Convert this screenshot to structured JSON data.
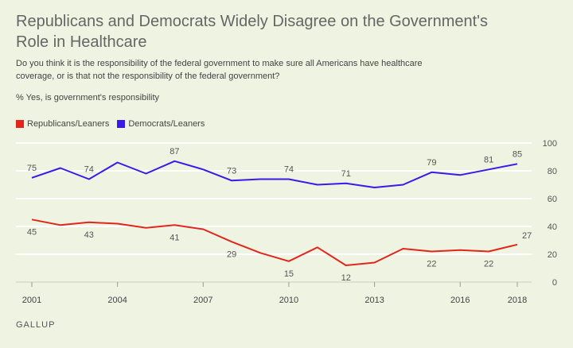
{
  "title": "Republicans and Democrats Widely Disagree on the Government's Role in Healthcare",
  "question": "Do you think it is the responsibility of the federal government to make sure all Americans have healthcare coverage, or is that not the responsibility of the federal government?",
  "subtitle": "% Yes, is government's responsibility",
  "footer": "GALLUP",
  "colors": {
    "republicans": "#e2261c",
    "democrats": "#3a1aea",
    "grid": "#ffffff",
    "background": "#eef3e2"
  },
  "chart_data": {
    "type": "line",
    "x": [
      2001,
      2002,
      2003,
      2004,
      2005,
      2006,
      2007,
      2008,
      2009,
      2010,
      2011,
      2012,
      2013,
      2014,
      2015,
      2016,
      2017,
      2018
    ],
    "xticks": [
      "2001",
      "2004",
      "2007",
      "2010",
      "2013",
      "2016",
      "2018"
    ],
    "xtick_values": [
      2001,
      2004,
      2007,
      2010,
      2013,
      2016,
      2018
    ],
    "ylim": [
      0,
      100
    ],
    "yticks": [
      0,
      20,
      40,
      60,
      80,
      100
    ],
    "grid": true,
    "legend_position": "top-left",
    "series": [
      {
        "name": "Republicans/Leaners",
        "color": "#e2261c",
        "values": [
          45,
          41,
          43,
          42,
          39,
          41,
          38,
          29,
          21,
          15,
          25,
          12,
          14,
          24,
          22,
          23,
          22,
          27
        ],
        "labels": [
          {
            "x": 2001,
            "y": 45,
            "text": "45",
            "pos": "below"
          },
          {
            "x": 2003,
            "y": 43,
            "text": "43",
            "pos": "below"
          },
          {
            "x": 2006,
            "y": 41,
            "text": "41",
            "pos": "below"
          },
          {
            "x": 2008,
            "y": 29,
            "text": "29",
            "pos": "below"
          },
          {
            "x": 2010,
            "y": 15,
            "text": "15",
            "pos": "below"
          },
          {
            "x": 2012,
            "y": 12,
            "text": "12",
            "pos": "below"
          },
          {
            "x": 2015,
            "y": 22,
            "text": "22",
            "pos": "below"
          },
          {
            "x": 2017,
            "y": 22,
            "text": "22",
            "pos": "below"
          },
          {
            "x": 2018,
            "y": 27,
            "text": "27",
            "pos": "right"
          }
        ]
      },
      {
        "name": "Democrats/Leaners",
        "color": "#3a1aea",
        "values": [
          75,
          82,
          74,
          86,
          78,
          87,
          81,
          73,
          74,
          74,
          70,
          71,
          68,
          70,
          79,
          77,
          81,
          85
        ],
        "labels": [
          {
            "x": 2001,
            "y": 75,
            "text": "75",
            "pos": "above"
          },
          {
            "x": 2003,
            "y": 74,
            "text": "74",
            "pos": "above"
          },
          {
            "x": 2006,
            "y": 87,
            "text": "87",
            "pos": "above"
          },
          {
            "x": 2008,
            "y": 73,
            "text": "73",
            "pos": "above"
          },
          {
            "x": 2010,
            "y": 74,
            "text": "74",
            "pos": "above"
          },
          {
            "x": 2012,
            "y": 71,
            "text": "71",
            "pos": "above"
          },
          {
            "x": 2015,
            "y": 79,
            "text": "79",
            "pos": "above"
          },
          {
            "x": 2017,
            "y": 81,
            "text": "81",
            "pos": "above"
          },
          {
            "x": 2018,
            "y": 85,
            "text": "85",
            "pos": "above"
          }
        ]
      }
    ]
  }
}
